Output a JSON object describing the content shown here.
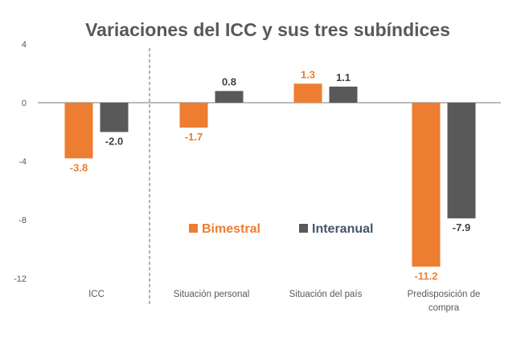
{
  "chart_data": {
    "type": "bar",
    "title": "Variaciones del ICC y sus tres subíndices",
    "categories": [
      "ICC",
      "Situación personal",
      "Situación del país",
      "Predisposición de compra"
    ],
    "series": [
      {
        "name": "Bimestral",
        "color": "#ED7D31",
        "values": [
          -3.8,
          -1.7,
          1.3,
          -11.2
        ],
        "labels": [
          "-3.8",
          "-1.7",
          "1.3",
          "-11.2"
        ]
      },
      {
        "name": "Interanual",
        "color": "#595959",
        "values": [
          -2.0,
          0.8,
          1.1,
          -7.9
        ],
        "labels": [
          "-2.0",
          "0.8",
          "1.1",
          "-7.9"
        ]
      }
    ],
    "yticks": [
      4,
      0,
      -4,
      -8,
      -12
    ],
    "ytick_labels": [
      "4",
      "0",
      "-4",
      "-8",
      "-12"
    ],
    "ylim": [
      -12,
      4
    ],
    "grid": false,
    "separator_after_category": "ICC",
    "legend_placement": "center",
    "xlabel": "",
    "ylabel": ""
  }
}
